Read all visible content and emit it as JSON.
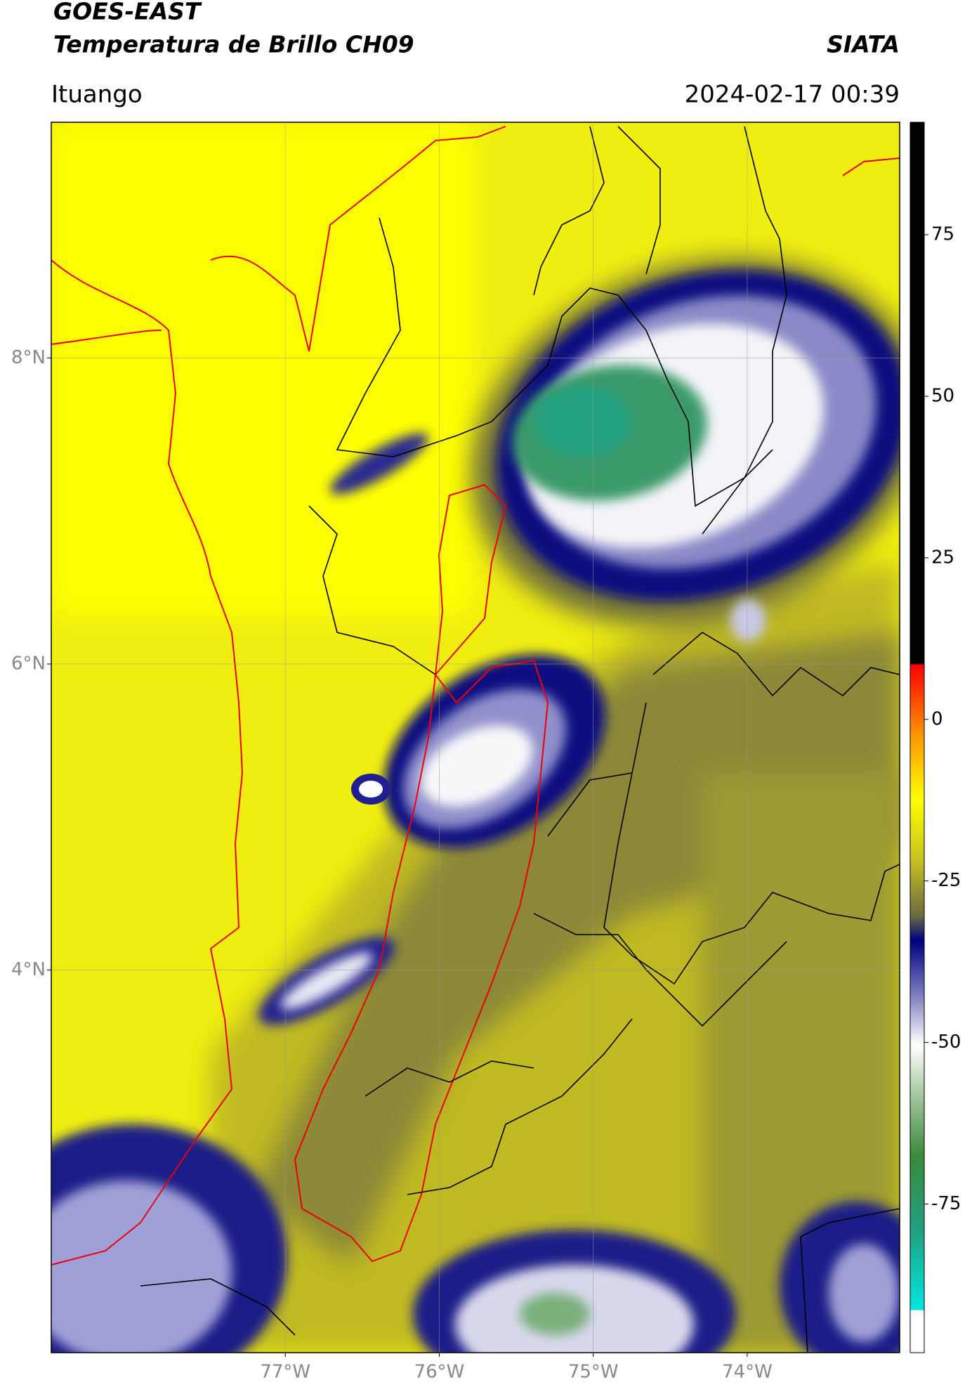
{
  "header": {
    "satellite": "GOES-EAST",
    "product": "Temperatura de Brillo CH09",
    "source": "SIATA",
    "location": "Ituango",
    "datetime": "2024-02-17 00:39"
  },
  "map": {
    "lat_range": [
      1.5,
      9.54
    ],
    "lon_range": [
      -78.52,
      -73.01
    ],
    "lat_ticks": [
      {
        "value": 8,
        "label": "8°N"
      },
      {
        "value": 6,
        "label": "6°N"
      },
      {
        "value": 4,
        "label": "4°N"
      }
    ],
    "lon_ticks": [
      {
        "value": -77,
        "label": "77°W"
      },
      {
        "value": -76,
        "label": "76°W"
      },
      {
        "value": -75,
        "label": "75°W"
      },
      {
        "value": -74,
        "label": "74°W"
      }
    ]
  },
  "colorbar": {
    "range": [
      -98,
      92.4
    ],
    "ticks": [
      75,
      50,
      25,
      0,
      -25,
      -50,
      -75
    ]
  }
}
